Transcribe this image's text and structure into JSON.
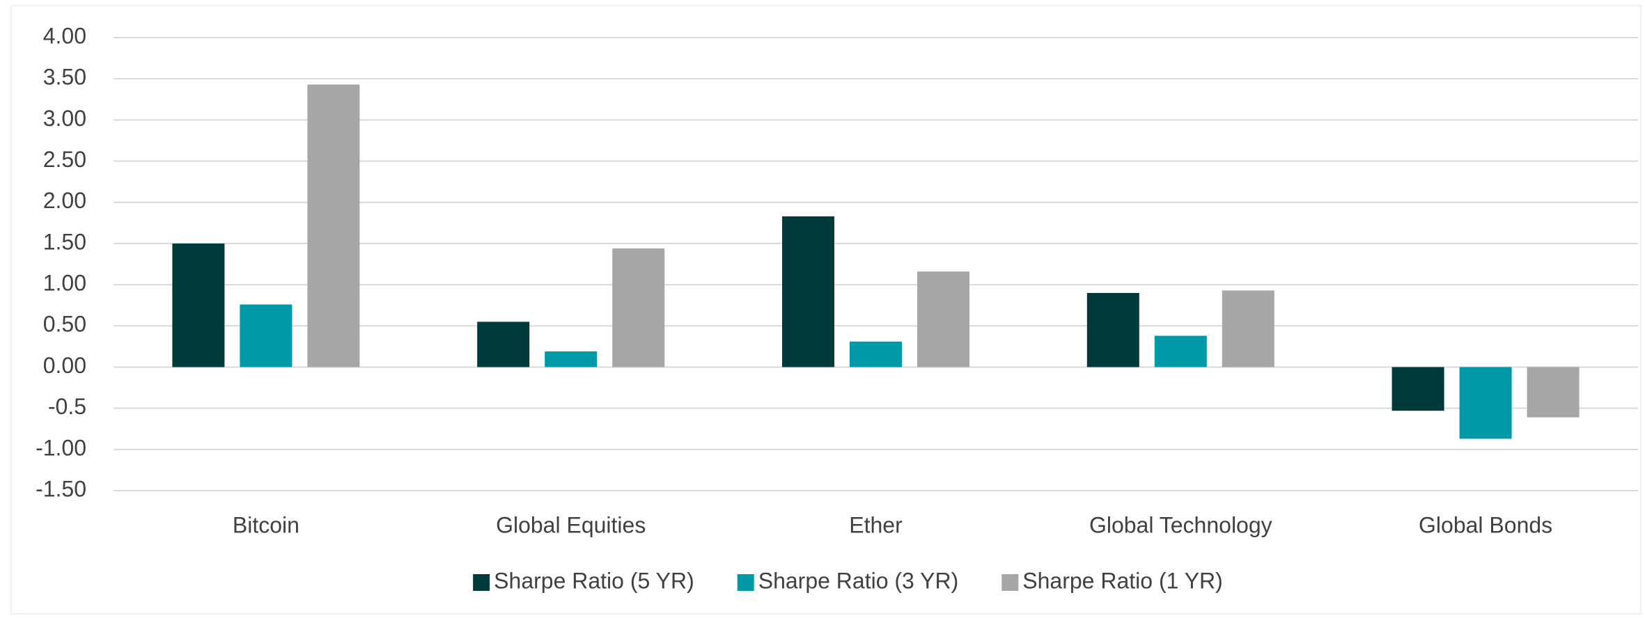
{
  "chart_data": {
    "type": "bar",
    "categories": [
      "Bitcoin",
      "Global Equities",
      "Ether",
      "Global Technology",
      "Global Bonds"
    ],
    "series": [
      {
        "name": "Sharpe Ratio (5 YR)",
        "color": "#013a3b",
        "values": [
          1.5,
          0.55,
          1.83,
          0.9,
          -0.53
        ]
      },
      {
        "name": "Sharpe Ratio (3 YR)",
        "color": "#0099a8",
        "values": [
          0.76,
          0.19,
          0.31,
          0.38,
          -0.87
        ]
      },
      {
        "name": "Sharpe Ratio (1 YR)",
        "color": "#a6a6a6",
        "values": [
          3.43,
          1.44,
          1.16,
          0.93,
          -0.61
        ]
      }
    ],
    "ylim": [
      -1.5,
      4
    ],
    "yticks": [
      {
        "value": -1.5,
        "label": "-1.50"
      },
      {
        "value": -1,
        "label": "-1.00"
      },
      -0.5,
      {
        "value": 0,
        "label": "0.00"
      },
      {
        "value": 0.5,
        "label": "0.50"
      },
      {
        "value": 1,
        "label": "1.00"
      },
      {
        "value": 1.5,
        "label": "1.50"
      },
      {
        "value": 2,
        "label": "2.00"
      },
      {
        "value": 2.5,
        "label": "2.50"
      },
      {
        "value": 3,
        "label": "3.00"
      },
      {
        "value": 3.5,
        "label": "3.50"
      },
      {
        "value": 4,
        "label": "4.00"
      }
    ],
    "grid": true,
    "legend": "bottom"
  }
}
